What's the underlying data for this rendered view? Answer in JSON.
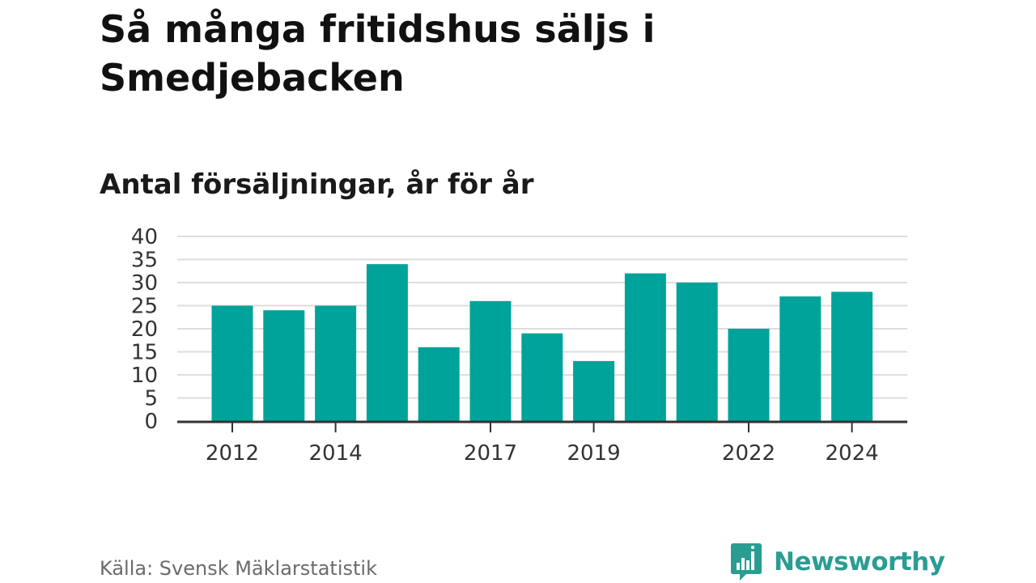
{
  "title": "Så många fritidshus säljs i Smedjebacken",
  "subtitle": "Antal försäljningar, år för år",
  "source": "Källa: Svensk Mäklarstatistik",
  "brand": {
    "name": "Newsworthy",
    "logo_icon": "bar-chart-bubble-icon",
    "color": "#2a9d93"
  },
  "colors": {
    "bar": "#00a39a",
    "grid": "#dddddd",
    "axis": "#333333"
  },
  "chart_data": {
    "type": "bar",
    "categories": [
      "2012",
      "2013",
      "2014",
      "2015",
      "2016",
      "2017",
      "2018",
      "2019",
      "2020",
      "2021",
      "2022",
      "2023",
      "2024"
    ],
    "values": [
      25,
      24,
      25,
      34,
      16,
      26,
      19,
      13,
      32,
      30,
      20,
      27,
      28
    ],
    "x_tick_labels": [
      "2012",
      "2014",
      "2017",
      "2019",
      "2022",
      "2024"
    ],
    "y_ticks": [
      0,
      5,
      10,
      15,
      20,
      25,
      30,
      35,
      40
    ],
    "ylim": [
      0,
      40
    ],
    "title": "Antal försäljningar, år för år",
    "xlabel": "",
    "ylabel": "",
    "grid": true
  }
}
